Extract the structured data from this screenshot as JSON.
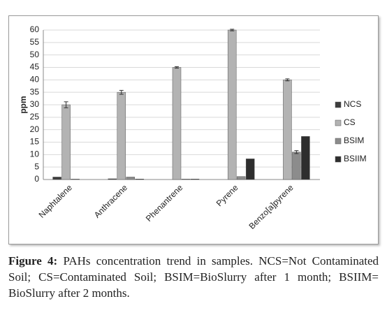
{
  "chart_data": {
    "type": "bar",
    "y_label": "ppm",
    "categories": [
      "Naphtalene",
      "Anthracene",
      "Phenantrene",
      "Pyrene",
      "Benzo[a]pyrene"
    ],
    "series": [
      {
        "name": "NCS",
        "color": "#3d3d3d",
        "values": [
          1,
          0.3,
          0,
          0,
          0
        ]
      },
      {
        "name": "CS",
        "color": "#b3b3b3",
        "values": [
          30,
          35,
          45,
          60,
          40
        ],
        "errors": [
          1.2,
          0.8,
          0.3,
          0.3,
          0.4
        ]
      },
      {
        "name": "BSIM",
        "color": "#8c8c8c",
        "values": [
          0.2,
          1,
          0.2,
          1.2,
          11
        ],
        "errors": [
          0,
          0,
          0,
          0,
          0.6
        ]
      },
      {
        "name": "BSIIM",
        "color": "#2e2e2e",
        "values": [
          0,
          0.2,
          0.2,
          8.3,
          17.3
        ]
      }
    ],
    "ylim": [
      0,
      60
    ],
    "yticks": [
      0,
      5,
      10,
      15,
      20,
      25,
      30,
      35,
      40,
      45,
      50,
      55,
      60
    ],
    "grid": true,
    "caption_label": "Figure 4:",
    "caption": "PAHs concentration trend in samples. NCS=Not Contaminated Soil; CS=Contaminated Soil; BSIM=BioSlurry after 1 month; BSIIM= BioSlurry after 2 months."
  }
}
